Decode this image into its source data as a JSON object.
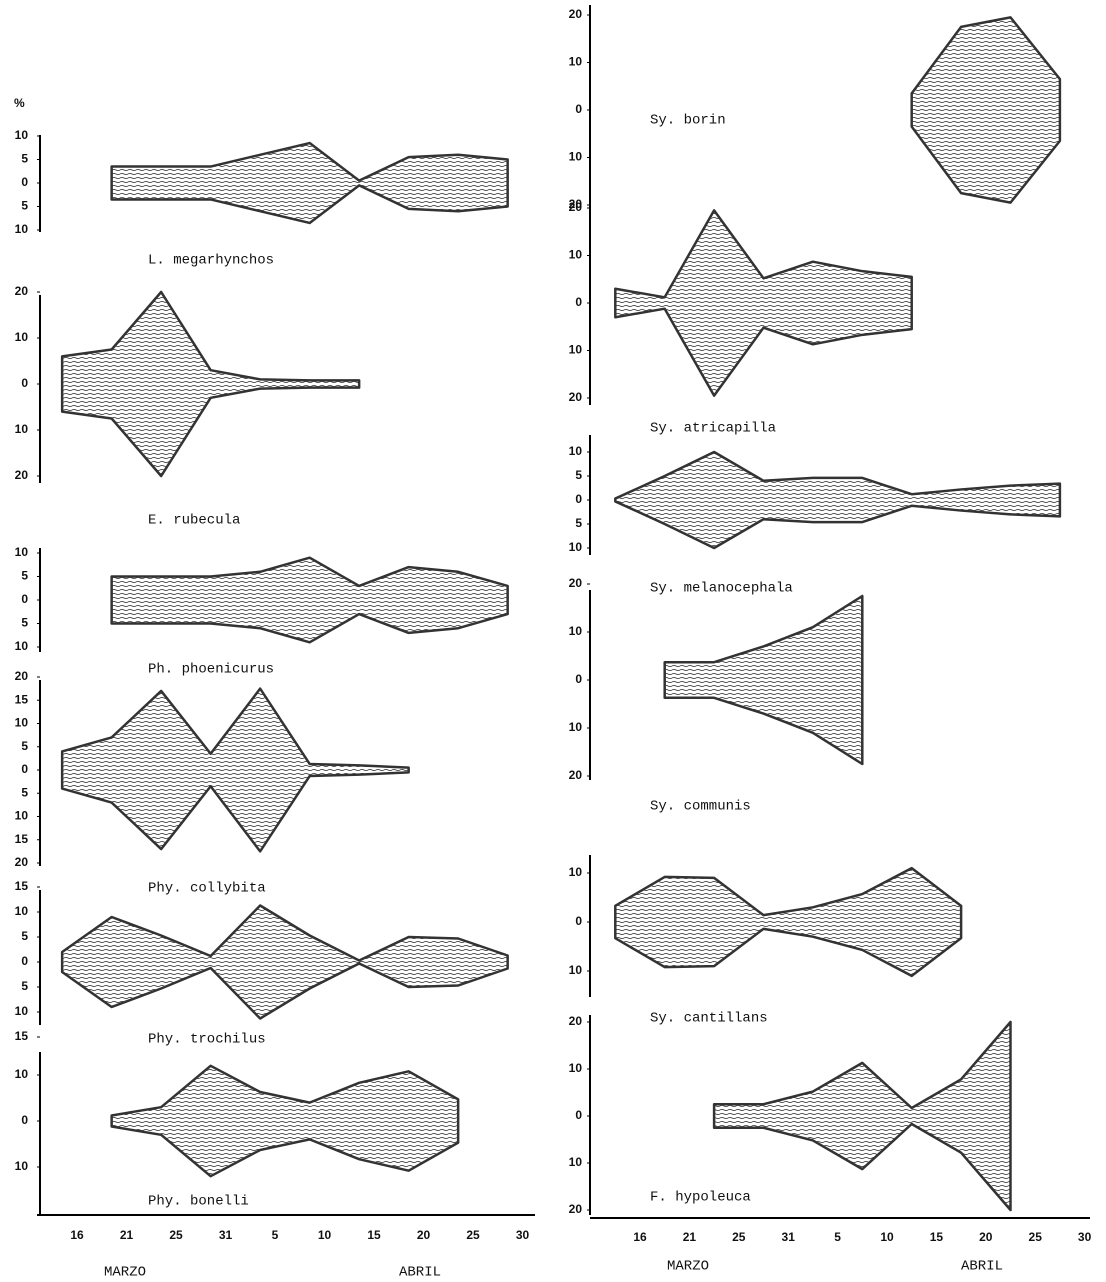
{
  "chart_data": [
    {
      "type": "kite",
      "unit": "%",
      "color": "#333333",
      "categories": [
        "16",
        "21",
        "25",
        "31",
        "5",
        "10",
        "15",
        "20",
        "25",
        "30"
      ],
      "months": [
        "MARZO",
        "ABRIL"
      ],
      "panels": [
        {
          "name": "L. megarhynchos",
          "ylim": [
            -10,
            10
          ],
          "yticks": [
            10,
            5,
            0,
            {
              "value": -5,
              "label": "5"
            },
            {
              "value": -10,
              "label": "10"
            }
          ],
          "values": [
            null,
            3.5,
            3.5,
            3.5,
            6,
            8.5,
            0.5,
            5.5,
            6,
            5
          ]
        },
        {
          "name": "E. rubecula",
          "ylim": [
            -20,
            20
          ],
          "yticks": [
            20,
            10,
            0,
            {
              "value": -10,
              "label": "10"
            },
            {
              "value": -20,
              "label": "20"
            }
          ],
          "values": [
            6,
            7.5,
            20,
            3,
            1,
            0.8,
            0.8,
            null,
            null,
            null
          ]
        },
        {
          "name": "Ph. phoenicurus",
          "ylim": [
            -10,
            10
          ],
          "yticks": [
            10,
            5,
            0,
            {
              "value": -5,
              "label": "5"
            },
            {
              "value": -10,
              "label": "10"
            }
          ],
          "values": [
            null,
            5,
            5,
            5,
            6,
            9,
            3,
            7,
            6,
            3
          ]
        },
        {
          "name": "Phy. collybita",
          "ylim": [
            -20,
            20
          ],
          "yticks": [
            20,
            15,
            10,
            5,
            0,
            {
              "value": -5,
              "label": "5"
            },
            {
              "value": -10,
              "label": "10"
            },
            {
              "value": -15,
              "label": "15"
            },
            {
              "value": -20,
              "label": "20"
            }
          ],
          "values": [
            4,
            7,
            17,
            3.5,
            17.5,
            1.3,
            1,
            0.5,
            null,
            null
          ]
        },
        {
          "name": "Phy. trochilus",
          "ylim": [
            -15,
            15
          ],
          "yticks": [
            15,
            10,
            5,
            0,
            {
              "value": -5,
              "label": "5"
            },
            {
              "value": -10,
              "label": "10"
            },
            {
              "value": -15,
              "label": "15"
            }
          ],
          "values": [
            2,
            9,
            5.3,
            1.2,
            11.3,
            5.3,
            0.3,
            5,
            4.7,
            1.3
          ]
        },
        {
          "name": "Phy. bonelli",
          "ylim": [
            -10,
            10
          ],
          "yticks": [
            10,
            0,
            {
              "value": -10,
              "label": "10"
            }
          ],
          "values": [
            null,
            1.2,
            3,
            12,
            6.3,
            4,
            8.3,
            10.8,
            4.7,
            null
          ]
        }
      ]
    },
    {
      "type": "kite",
      "color": "#333333",
      "categories": [
        "16",
        "21",
        "25",
        "31",
        "5",
        "10",
        "15",
        "20",
        "25",
        "30"
      ],
      "months": [
        "MARZO",
        "ABRIL"
      ],
      "panels": [
        {
          "name": "Sy. borin",
          "ylim": [
            -20,
            20
          ],
          "yticks": [
            20,
            10,
            0,
            {
              "value": -10,
              "label": "10"
            },
            {
              "value": -20,
              "label": "20"
            }
          ],
          "values": [
            null,
            null,
            null,
            null,
            null,
            null,
            3.5,
            17.5,
            19.5,
            6.5
          ]
        },
        {
          "name": "Sy. atricapilla",
          "ylim": [
            -20,
            20
          ],
          "yticks": [
            20,
            10,
            0,
            {
              "value": -10,
              "label": "10"
            },
            {
              "value": -20,
              "label": "20"
            }
          ],
          "values": [
            3,
            1.2,
            19.5,
            5.2,
            8.7,
            6.7,
            5.5,
            null,
            null,
            null
          ]
        },
        {
          "name": "Sy. melanocephala",
          "ylim": [
            -10,
            10
          ],
          "yticks": [
            10,
            5,
            0,
            {
              "value": -5,
              "label": "5"
            },
            {
              "value": -10,
              "label": "10"
            }
          ],
          "values": [
            0.3,
            5,
            10,
            4,
            4.6,
            4.6,
            1.2,
            2.2,
            3,
            3.4
          ]
        },
        {
          "name": "Sy. communis",
          "ylim": [
            -20,
            20
          ],
          "yticks": [
            20,
            10,
            0,
            {
              "value": -10,
              "label": "10"
            },
            {
              "value": -20,
              "label": "20"
            }
          ],
          "values": [
            null,
            3.7,
            3.7,
            7,
            11,
            17.5,
            null,
            null,
            null,
            null
          ]
        },
        {
          "name": "Sy. cantillans",
          "ylim": [
            -10,
            10
          ],
          "yticks": [
            10,
            0,
            {
              "value": -10,
              "label": "10"
            }
          ],
          "values": [
            3.3,
            9.2,
            9,
            1.4,
            3,
            5.7,
            11,
            3.3,
            null,
            null
          ]
        },
        {
          "name": "F. hypoleuca",
          "ylim": [
            -20,
            20
          ],
          "yticks": [
            20,
            10,
            0,
            {
              "value": -10,
              "label": "10"
            },
            {
              "value": -20,
              "label": "20"
            }
          ],
          "values": [
            null,
            null,
            2.5,
            2.5,
            5.2,
            11.3,
            1.7,
            7.8,
            20,
            null
          ]
        }
      ]
    }
  ]
}
